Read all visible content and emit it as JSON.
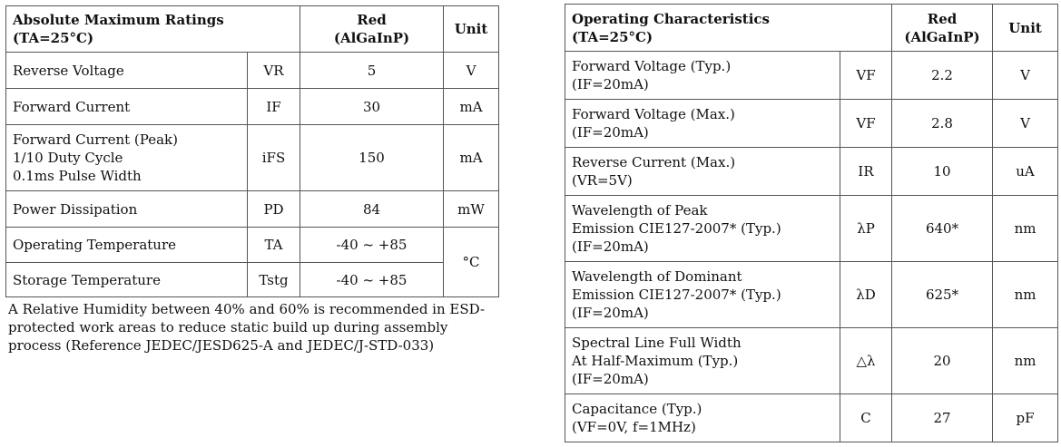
{
  "absolute_maximum_ratings": {
    "title": "Absolute Maximum Ratings",
    "condition": "(TA=25°C)",
    "col_red": "Red",
    "col_red_material": "(AlGaInP)",
    "col_unit": "Unit",
    "rows": [
      {
        "parameter": "Reverse Voltage",
        "symbol": "VR",
        "value": "5",
        "unit": "V"
      },
      {
        "parameter": "Forward Current",
        "symbol": "IF",
        "value": "30",
        "unit": "mA"
      },
      {
        "parameter": "Forward Current (Peak)\n1/10 Duty Cycle\n0.1ms Pulse Width",
        "symbol": "iFS",
        "value": "150",
        "unit": "mA"
      },
      {
        "parameter": "Power Dissipation",
        "symbol": "PD",
        "value": "84",
        "unit": "mW"
      },
      {
        "parameter": "Operating Temperature",
        "symbol": "TA",
        "value": "-40 ~ +85",
        "unit": "°C"
      },
      {
        "parameter": "Storage Temperature",
        "symbol": "Tstg",
        "value": "-40 ~ +85",
        "unit": ""
      }
    ],
    "note": "A Relative Humidity between 40% and 60% is recommended in ESD-protected work areas to reduce static build up during assembly process (Reference JEDEC/JESD625-A and JEDEC/J-STD-033)"
  },
  "operating_characteristics": {
    "title": "Operating Characteristics",
    "condition": "(TA=25°C)",
    "col_red": "Red",
    "col_red_material": "(AlGaInP)",
    "col_unit": "Unit",
    "rows": [
      {
        "parameter": "Forward Voltage (Typ.)\n(IF=20mA)",
        "symbol": "VF",
        "value": "2.2",
        "unit": "V"
      },
      {
        "parameter": "Forward Voltage (Max.)\n(IF=20mA)",
        "symbol": "VF",
        "value": "2.8",
        "unit": "V"
      },
      {
        "parameter": "Reverse Current (Max.)\n(VR=5V)",
        "symbol": "IR",
        "value": "10",
        "unit": "uA"
      },
      {
        "parameter": "Wavelength of Peak\nEmission  CIE127-2007* (Typ.)\n(IF=20mA)",
        "symbol": "λP",
        "value": "640*",
        "unit": "nm"
      },
      {
        "parameter": "Wavelength of Dominant\nEmission  CIE127-2007* (Typ.)\n(IF=20mA)",
        "symbol": "λD",
        "value": "625*",
        "unit": "nm"
      },
      {
        "parameter": "Spectral Line Full Width\nAt Half-Maximum (Typ.)\n(IF=20mA)",
        "symbol": "△λ",
        "value": "20",
        "unit": "nm"
      },
      {
        "parameter": "Capacitance (Typ.)\n(VF=0V, f=1MHz)",
        "symbol": "C",
        "value": "27",
        "unit": "pF"
      }
    ]
  }
}
